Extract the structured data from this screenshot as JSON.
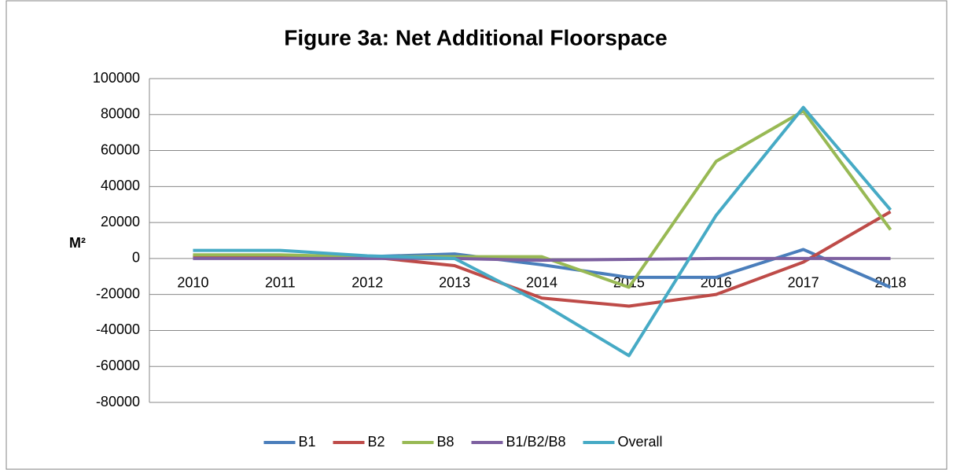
{
  "chart_data": {
    "type": "line",
    "title": "Figure 3a: Net Additional Floorspace",
    "y_label": "M²",
    "categories": [
      "2010",
      "2011",
      "2012",
      "2013",
      "2014",
      "2015",
      "2016",
      "2017",
      "2018"
    ],
    "series": [
      {
        "name": "B1",
        "color": "#4a7ebb",
        "values": [
          1000,
          1000,
          1000,
          2500,
          -3500,
          -10500,
          -10500,
          5000,
          -16000
        ]
      },
      {
        "name": "B2",
        "color": "#be4b48",
        "values": [
          1000,
          1000,
          1000,
          -4000,
          -22000,
          -26500,
          -20000,
          -2000,
          26000
        ]
      },
      {
        "name": "B8",
        "color": "#98b954",
        "values": [
          2000,
          2000,
          1000,
          1000,
          1000,
          -16000,
          54000,
          82000,
          16000
        ]
      },
      {
        "name": "B1/B2/B8",
        "color": "#7d60a0",
        "values": [
          0,
          0,
          0,
          0,
          -1000,
          -500,
          0,
          0,
          0
        ]
      },
      {
        "name": "Overall",
        "color": "#46aac5",
        "values": [
          4500,
          4500,
          1500,
          0,
          -25000,
          -54000,
          24000,
          84000,
          27000
        ]
      }
    ],
    "ylim": [
      -80000,
      100000
    ],
    "yticks": [
      -80000,
      -60000,
      -40000,
      -20000,
      0,
      20000,
      40000,
      60000,
      80000,
      100000
    ],
    "grid": true,
    "legend": "bottom"
  }
}
